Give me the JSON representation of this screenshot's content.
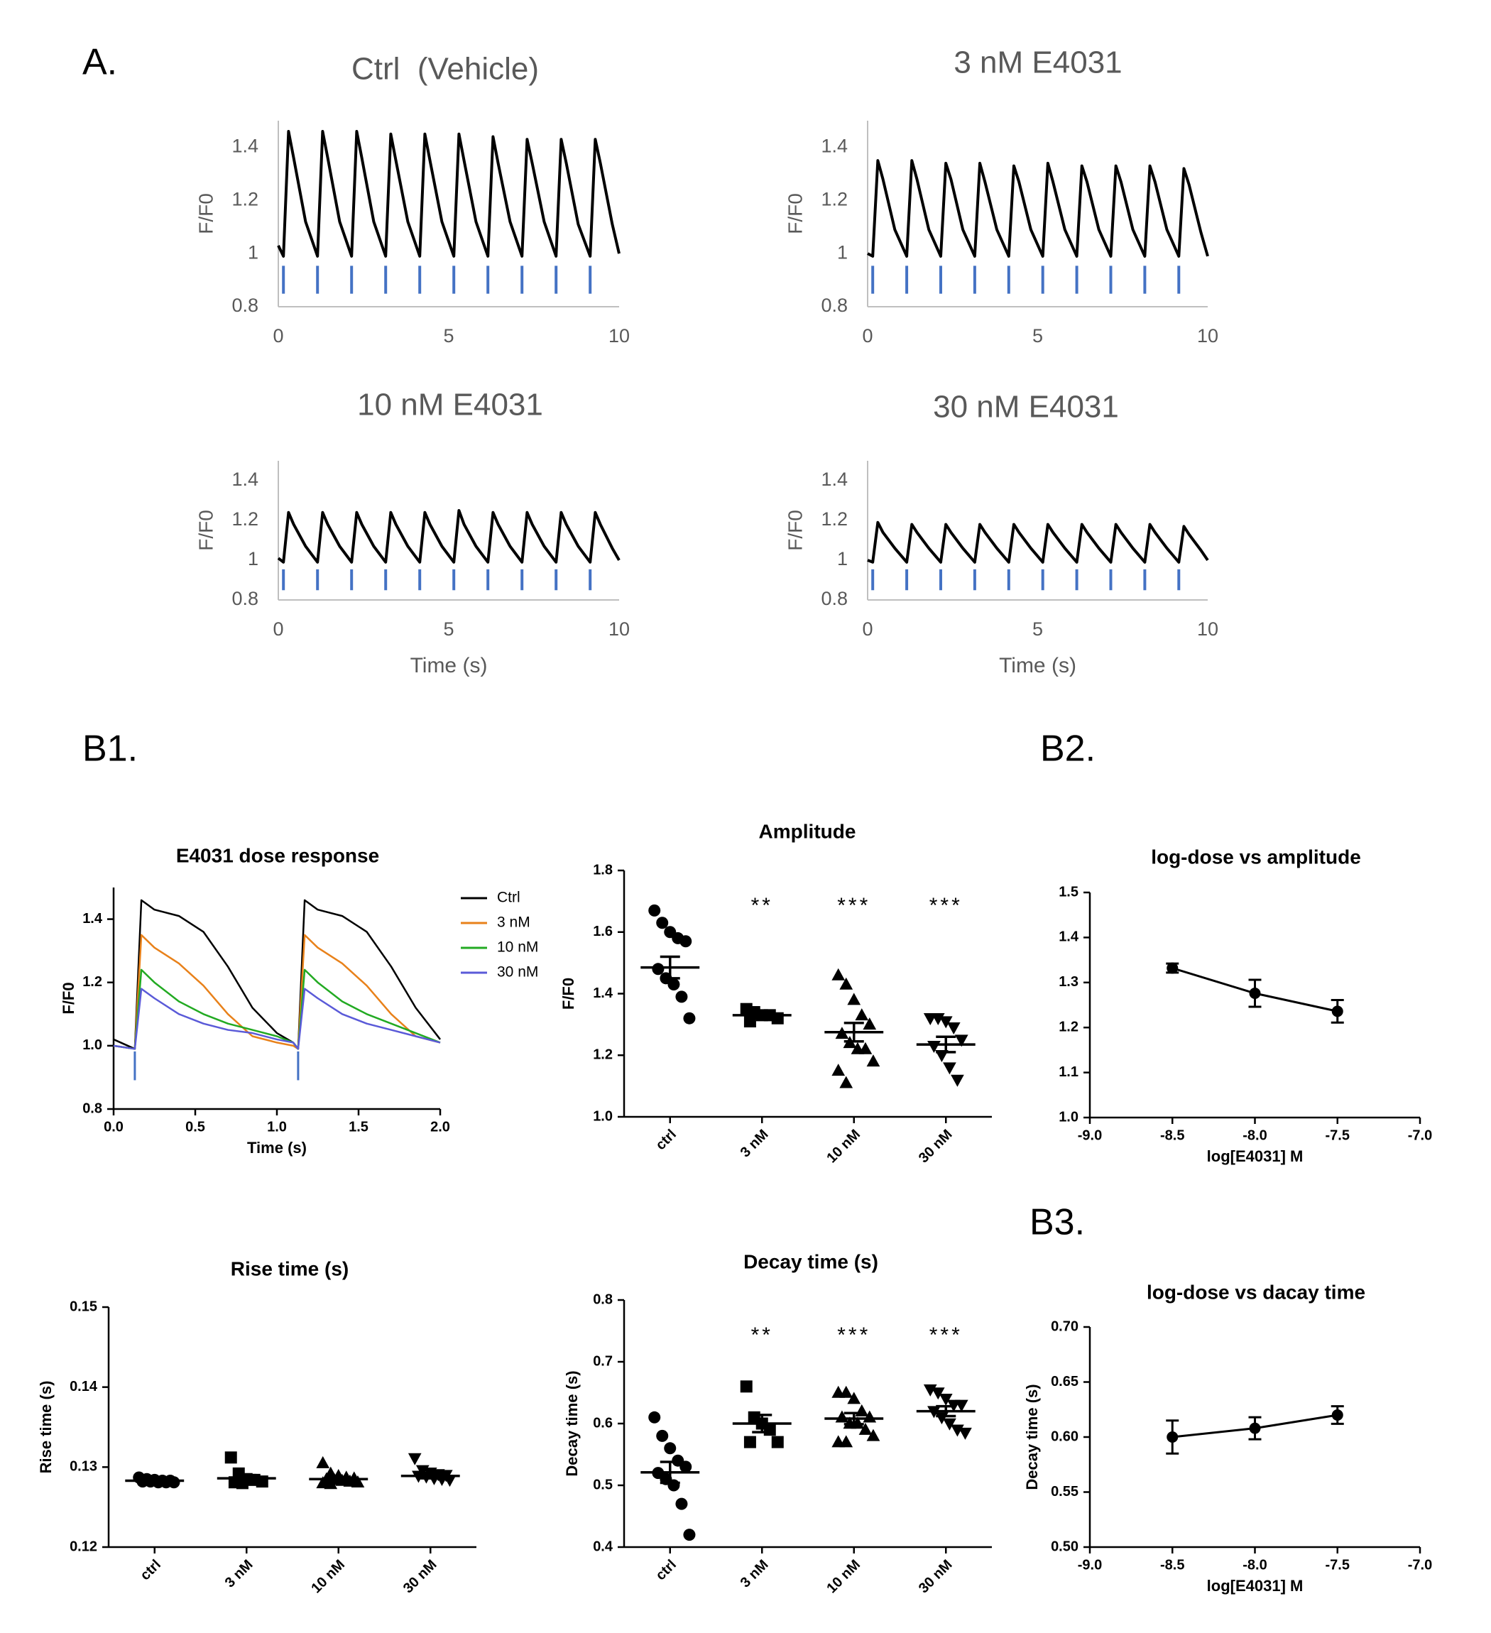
{
  "panel_labels": [
    "A.",
    "B1.",
    "B2.",
    "B3."
  ],
  "chart_data": [
    {
      "type": "line",
      "title": "Ctrl  (Vehicle)",
      "y_label": "F/F0",
      "x": [
        0,
        0.15,
        0.3,
        0.45,
        0.8,
        1.15,
        1.3,
        1.45,
        1.8,
        2.15,
        2.3,
        2.45,
        2.8,
        3.15,
        3.3,
        3.45,
        3.8,
        4.15,
        4.3,
        4.45,
        4.8,
        5.15,
        5.3,
        5.45,
        5.8,
        6.15,
        6.3,
        6.45,
        6.8,
        7.15,
        7.3,
        7.45,
        7.8,
        8.15,
        8.3,
        8.45,
        8.8,
        9.15,
        9.3,
        9.45,
        9.8,
        10
      ],
      "series": [
        {
          "color": "#000000",
          "values": [
            1.03,
            0.99,
            1.46,
            1.36,
            1.12,
            0.99,
            1.46,
            1.36,
            1.12,
            0.99,
            1.46,
            1.36,
            1.12,
            0.99,
            1.45,
            1.35,
            1.12,
            0.99,
            1.45,
            1.35,
            1.12,
            0.99,
            1.45,
            1.35,
            1.12,
            0.99,
            1.44,
            1.34,
            1.12,
            0.99,
            1.43,
            1.34,
            1.12,
            0.99,
            1.43,
            1.34,
            1.11,
            0.99,
            1.43,
            1.34,
            1.11,
            1.0
          ]
        }
      ],
      "events": [
        0.15,
        1.15,
        2.15,
        3.15,
        4.15,
        5.15,
        6.15,
        7.15,
        8.15,
        9.15
      ],
      "event_color": "#4472c4",
      "xlim": [
        0,
        10
      ],
      "xticks": [
        0,
        5,
        10
      ],
      "ylim": [
        0.8,
        1.5
      ],
      "yticks": [
        0.8,
        1,
        1.2,
        1.4
      ],
      "axis_color": "#bfbfbf",
      "text_color": "#595959",
      "tick_marks": false
    },
    {
      "type": "line",
      "title": "3 nM E4031",
      "y_label": "F/F0",
      "x": [
        0,
        0.15,
        0.3,
        0.45,
        0.8,
        1.15,
        1.3,
        1.45,
        1.8,
        2.15,
        2.3,
        2.45,
        2.8,
        3.15,
        3.3,
        3.45,
        3.8,
        4.15,
        4.3,
        4.45,
        4.8,
        5.15,
        5.3,
        5.45,
        5.8,
        6.15,
        6.3,
        6.45,
        6.8,
        7.15,
        7.3,
        7.45,
        7.8,
        8.15,
        8.3,
        8.45,
        8.8,
        9.15,
        9.3,
        9.45,
        9.8,
        10
      ],
      "series": [
        {
          "color": "#000000",
          "values": [
            1.0,
            0.99,
            1.35,
            1.28,
            1.09,
            0.99,
            1.35,
            1.28,
            1.09,
            0.99,
            1.34,
            1.28,
            1.09,
            0.99,
            1.34,
            1.27,
            1.09,
            0.99,
            1.33,
            1.27,
            1.09,
            0.99,
            1.34,
            1.27,
            1.09,
            0.99,
            1.33,
            1.27,
            1.09,
            0.99,
            1.33,
            1.27,
            1.09,
            0.99,
            1.33,
            1.27,
            1.09,
            0.99,
            1.32,
            1.26,
            1.08,
            0.99
          ]
        }
      ],
      "events": [
        0.15,
        1.15,
        2.15,
        3.15,
        4.15,
        5.15,
        6.15,
        7.15,
        8.15,
        9.15
      ],
      "event_color": "#4472c4",
      "xlim": [
        0,
        10
      ],
      "xticks": [
        0,
        5,
        10
      ],
      "ylim": [
        0.8,
        1.5
      ],
      "yticks": [
        0.8,
        1,
        1.2,
        1.4
      ],
      "axis_color": "#bfbfbf",
      "text_color": "#595959",
      "tick_marks": false
    },
    {
      "type": "line",
      "title": "10 nM E4031",
      "x_label": "Time (s)",
      "y_label": "F/F0",
      "x": [
        0,
        0.15,
        0.3,
        0.45,
        0.8,
        1.15,
        1.3,
        1.45,
        1.8,
        2.15,
        2.3,
        2.45,
        2.8,
        3.15,
        3.3,
        3.45,
        3.8,
        4.15,
        4.3,
        4.45,
        4.8,
        5.15,
        5.3,
        5.45,
        5.8,
        6.15,
        6.3,
        6.45,
        6.8,
        7.15,
        7.3,
        7.45,
        7.8,
        8.15,
        8.3,
        8.45,
        8.8,
        9.15,
        9.3,
        9.45,
        9.8,
        10
      ],
      "series": [
        {
          "color": "#000000",
          "values": [
            1.01,
            0.99,
            1.24,
            1.18,
            1.07,
            0.99,
            1.24,
            1.18,
            1.07,
            0.99,
            1.24,
            1.18,
            1.07,
            0.99,
            1.24,
            1.18,
            1.07,
            0.99,
            1.24,
            1.18,
            1.07,
            0.99,
            1.25,
            1.18,
            1.07,
            0.99,
            1.24,
            1.18,
            1.07,
            0.99,
            1.24,
            1.18,
            1.07,
            0.99,
            1.24,
            1.18,
            1.07,
            0.99,
            1.24,
            1.18,
            1.06,
            1.0
          ]
        }
      ],
      "events": [
        0.15,
        1.15,
        2.15,
        3.15,
        4.15,
        5.15,
        6.15,
        7.15,
        8.15,
        9.15
      ],
      "event_color": "#4472c4",
      "xlim": [
        0,
        10
      ],
      "xticks": [
        0,
        5,
        10
      ],
      "ylim": [
        0.8,
        1.5
      ],
      "yticks": [
        0.8,
        1,
        1.2,
        1.4
      ],
      "axis_color": "#bfbfbf",
      "text_color": "#595959",
      "tick_marks": false
    },
    {
      "type": "line",
      "title": "30 nM E4031",
      "x_label": "Time (s)",
      "y_label": "F/F0",
      "x": [
        0,
        0.15,
        0.3,
        0.45,
        0.8,
        1.15,
        1.3,
        1.45,
        1.8,
        2.15,
        2.3,
        2.45,
        2.8,
        3.15,
        3.3,
        3.45,
        3.8,
        4.15,
        4.3,
        4.45,
        4.8,
        5.15,
        5.3,
        5.45,
        5.8,
        6.15,
        6.3,
        6.45,
        6.8,
        7.15,
        7.3,
        7.45,
        7.8,
        8.15,
        8.3,
        8.45,
        8.8,
        9.15,
        9.3,
        9.45,
        9.8,
        10
      ],
      "series": [
        {
          "color": "#000000",
          "values": [
            1.0,
            0.99,
            1.19,
            1.14,
            1.06,
            0.99,
            1.18,
            1.14,
            1.06,
            0.99,
            1.18,
            1.14,
            1.06,
            0.99,
            1.18,
            1.14,
            1.06,
            0.99,
            1.18,
            1.14,
            1.06,
            0.99,
            1.18,
            1.14,
            1.06,
            0.99,
            1.18,
            1.14,
            1.06,
            0.99,
            1.18,
            1.14,
            1.06,
            0.99,
            1.18,
            1.14,
            1.06,
            0.99,
            1.17,
            1.13,
            1.05,
            1.0
          ]
        }
      ],
      "events": [
        0.15,
        1.15,
        2.15,
        3.15,
        4.15,
        5.15,
        6.15,
        7.15,
        8.15,
        9.15
      ],
      "event_color": "#4472c4",
      "xlim": [
        0,
        10
      ],
      "xticks": [
        0,
        5,
        10
      ],
      "ylim": [
        0.8,
        1.5
      ],
      "yticks": [
        0.8,
        1,
        1.2,
        1.4
      ],
      "axis_color": "#bfbfbf",
      "text_color": "#595959",
      "tick_marks": false
    },
    {
      "type": "line",
      "title": "E4031 dose response",
      "x_label": "Time (s)",
      "y_label": "F/F0",
      "x": [
        0,
        0.13,
        0.17,
        0.25,
        0.4,
        0.55,
        0.7,
        0.85,
        1.0,
        1.1,
        1.13,
        1.17,
        1.25,
        1.4,
        1.55,
        1.7,
        1.85,
        2.0
      ],
      "series": [
        {
          "name": "Ctrl",
          "color": "#000000",
          "values": [
            1.02,
            0.99,
            1.46,
            1.43,
            1.41,
            1.36,
            1.25,
            1.12,
            1.04,
            1.01,
            0.99,
            1.46,
            1.43,
            1.41,
            1.36,
            1.25,
            1.12,
            1.02
          ]
        },
        {
          "name": "3 nM",
          "color": "#e8811a",
          "values": [
            1.0,
            0.99,
            1.35,
            1.31,
            1.26,
            1.19,
            1.1,
            1.03,
            1.01,
            1.0,
            0.99,
            1.35,
            1.31,
            1.26,
            1.19,
            1.1,
            1.03,
            1.01
          ]
        },
        {
          "name": "10 nM",
          "color": "#22aa22",
          "values": [
            1.0,
            0.99,
            1.24,
            1.2,
            1.14,
            1.1,
            1.07,
            1.05,
            1.03,
            1.01,
            0.99,
            1.24,
            1.2,
            1.14,
            1.1,
            1.07,
            1.04,
            1.01
          ]
        },
        {
          "name": "30 nM",
          "color": "#5a5ad8",
          "values": [
            1.0,
            0.99,
            1.18,
            1.15,
            1.1,
            1.07,
            1.05,
            1.04,
            1.02,
            1.01,
            0.99,
            1.18,
            1.15,
            1.1,
            1.07,
            1.05,
            1.03,
            1.01
          ]
        }
      ],
      "events": [
        0.13,
        1.13
      ],
      "event_color": "#4472c4",
      "legend": "right",
      "xlim": [
        0,
        2
      ],
      "xticks": [
        {
          "value": 0,
          "label": "0.0"
        },
        0.5,
        {
          "value": 1,
          "label": "1.0"
        },
        1.5,
        {
          "value": 2,
          "label": "2.0"
        }
      ],
      "ylim": [
        0.8,
        1.5
      ],
      "yticks": [
        0.8,
        {
          "value": 1,
          "label": "1.0"
        },
        1.2,
        1.4
      ],
      "axis_color": "#000000",
      "text_color": "#000000",
      "tick_marks": true
    },
    {
      "type": "dot",
      "title": "Amplitude",
      "y_label": "F/F0",
      "categories": [
        "ctrl",
        "3 nM",
        "10 nM",
        "30 nM"
      ],
      "points": [
        [
          1.67,
          1.63,
          1.6,
          1.58,
          1.57,
          1.48,
          1.45,
          1.43,
          1.39,
          1.32
        ],
        [
          1.35,
          1.34,
          1.33,
          1.33,
          1.32,
          1.31
        ],
        [
          1.46,
          1.43,
          1.38,
          1.33,
          1.3,
          1.27,
          1.24,
          1.22,
          1.22,
          1.18,
          1.15,
          1.11
        ],
        [
          1.32,
          1.32,
          1.31,
          1.29,
          1.25,
          1.23,
          1.2,
          1.16,
          1.12
        ]
      ],
      "mean": [
        1.485,
        1.33,
        1.275,
        1.235
      ],
      "sem": [
        0.035,
        0.01,
        0.03,
        0.025
      ],
      "markers": [
        "circle",
        "square",
        "triangle",
        "triangle-down"
      ],
      "annotations": [
        null,
        "**",
        "***",
        "***"
      ],
      "ylim": [
        1,
        1.8
      ],
      "yticks": [
        {
          "value": 1,
          "label": "1.0"
        },
        1.2,
        1.4,
        1.6,
        1.8
      ],
      "axis_color": "#000000",
      "text_color": "#000000",
      "tick_marks": true
    },
    {
      "type": "errorline",
      "title": "log-dose vs amplitude",
      "x_label": "log[E4031] M",
      "x": [
        -8.5,
        -8,
        -7.5
      ],
      "values": [
        1.332,
        1.276,
        1.236
      ],
      "errors": [
        0.01,
        0.03,
        0.025
      ],
      "xlim": [
        -9,
        -7
      ],
      "xticks": [
        {
          "value": -9,
          "label": "-9.0"
        },
        -8.5,
        {
          "value": -8,
          "label": "-8.0"
        },
        -7.5,
        {
          "value": -7,
          "label": "-7.0"
        }
      ],
      "ylim": [
        1,
        1.5
      ],
      "yticks": [
        {
          "value": 1,
          "label": "1.0"
        },
        1.1,
        1.2,
        1.3,
        1.4,
        1.5
      ],
      "axis_color": "#000000",
      "text_color": "#000000",
      "tick_marks": true
    },
    {
      "type": "dot",
      "title": "Rise time (s)",
      "y_label": "Rise time (s)",
      "categories": [
        "ctrl",
        "3 nM",
        "10 nM",
        "30 nM"
      ],
      "points": [
        [
          0.1287,
          0.1285,
          0.1284,
          0.1283,
          0.1283,
          0.1282,
          0.1282,
          0.1281,
          0.1281,
          0.1281
        ],
        [
          0.1312,
          0.1292,
          0.1285,
          0.1284,
          0.1282,
          0.1281,
          0.128
        ],
        [
          0.1305,
          0.1292,
          0.1289,
          0.1287,
          0.1286,
          0.1285,
          0.1284,
          0.1283,
          0.1282,
          0.1281,
          0.128,
          0.1279
        ],
        [
          0.1311,
          0.1296,
          0.1293,
          0.1291,
          0.129,
          0.1289,
          0.1288,
          0.1286,
          0.1285,
          0.1284
        ]
      ],
      "mean": [
        0.1283,
        0.1286,
        0.1285,
        0.1289
      ],
      "sem": [
        0.0001,
        0.0004,
        0.0002,
        0.0003
      ],
      "markers": [
        "circle",
        "square",
        "triangle",
        "triangle-down"
      ],
      "ylim": [
        0.12,
        0.15
      ],
      "yticks": [
        0.12,
        0.13,
        0.14,
        0.15
      ],
      "axis_color": "#000000",
      "text_color": "#000000",
      "tick_marks": true
    },
    {
      "type": "dot",
      "title": "Decay time (s)",
      "y_label": "Decay time (s)",
      "categories": [
        "ctrl",
        "3 nM",
        "10 nM",
        "30 nM"
      ],
      "points": [
        [
          0.61,
          0.58,
          0.56,
          0.54,
          0.53,
          0.52,
          0.51,
          0.5,
          0.47,
          0.42
        ],
        [
          0.66,
          0.61,
          0.6,
          0.59,
          0.57,
          0.57
        ],
        [
          0.65,
          0.65,
          0.64,
          0.62,
          0.61,
          0.61,
          0.6,
          0.6,
          0.59,
          0.58,
          0.57,
          0.57
        ],
        [
          0.655,
          0.65,
          0.64,
          0.63,
          0.63,
          0.62,
          0.61,
          0.6,
          0.59,
          0.585
        ]
      ],
      "mean": [
        0.521,
        0.6,
        0.608,
        0.62
      ],
      "sem": [
        0.017,
        0.014,
        0.009,
        0.008
      ],
      "markers": [
        "circle",
        "square",
        "triangle",
        "triangle-down"
      ],
      "annotations": [
        null,
        "**",
        "***",
        "***"
      ],
      "ylim": [
        0.4,
        0.8
      ],
      "yticks": [
        0.4,
        0.5,
        0.6,
        0.7,
        0.8
      ],
      "axis_color": "#000000",
      "text_color": "#000000",
      "tick_marks": true
    },
    {
      "type": "errorline",
      "title": "log-dose vs dacay time",
      "x_label": "log[E4031] M",
      "y_label": "Decay time (s)",
      "x": [
        -8.5,
        -8,
        -7.5
      ],
      "values": [
        0.6,
        0.608,
        0.62
      ],
      "errors": [
        0.015,
        0.01,
        0.008
      ],
      "xlim": [
        -9,
        -7
      ],
      "xticks": [
        {
          "value": -9,
          "label": "-9.0"
        },
        -8.5,
        {
          "value": -8,
          "label": "-8.0"
        },
        -7.5,
        {
          "value": -7,
          "label": "-7.0"
        }
      ],
      "ylim": [
        0.5,
        0.7
      ],
      "yticks": [
        {
          "value": 0.5,
          "label": "0.50"
        },
        0.55,
        {
          "value": 0.6,
          "label": "0.60"
        },
        0.65,
        {
          "value": 0.7,
          "label": "0.70"
        }
      ],
      "axis_color": "#000000",
      "text_color": "#000000",
      "tick_marks": true
    }
  ]
}
